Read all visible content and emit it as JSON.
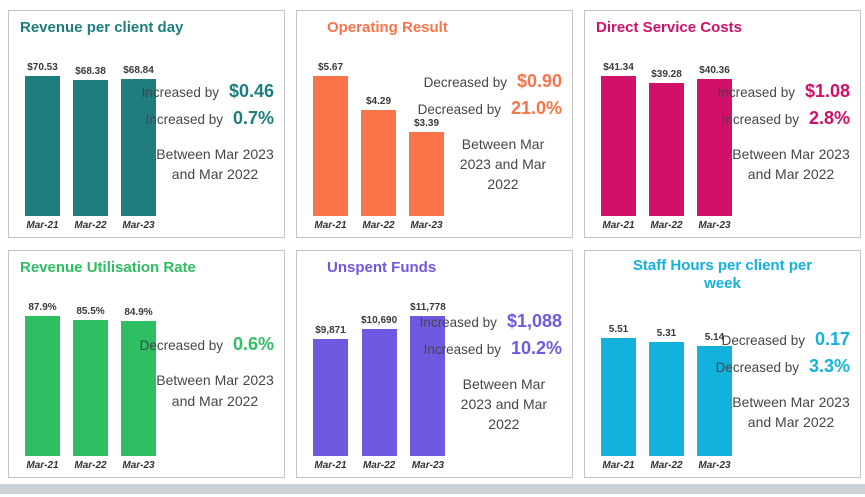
{
  "page": {
    "bottom_strip_color": "#cdd2d6"
  },
  "chart_data": [
    {
      "type": "bar",
      "title": "Revenue per client day",
      "accent": "#1F7D7D",
      "categories": [
        "Mar-21",
        "Mar-22",
        "Mar-23"
      ],
      "values": [
        70.53,
        68.38,
        68.84
      ],
      "bar_labels": [
        "$70.53",
        "$68.38",
        "$68.84"
      ],
      "annotations": {
        "metrics": [
          {
            "label": "Increased by",
            "value": "$0.46"
          },
          {
            "label": "Increased by",
            "value": "0.7%"
          }
        ],
        "period_lines": [
          "Between Mar 2023",
          "and Mar 2022"
        ]
      }
    },
    {
      "type": "bar",
      "title": "Operating Result",
      "accent": "#F97449",
      "categories": [
        "Mar-21",
        "Mar-22",
        "Mar-23"
      ],
      "values": [
        5.67,
        4.29,
        3.39
      ],
      "bar_labels": [
        "$5.67",
        "$4.29",
        "$3.39"
      ],
      "annotations": {
        "metrics": [
          {
            "label": "Decreased by",
            "value": "$0.90"
          },
          {
            "label": "Decreased by",
            "value": "21.0%"
          }
        ],
        "period_lines": [
          "Between Mar",
          "2023 and Mar 2022"
        ]
      }
    },
    {
      "type": "bar",
      "title": "Direct Service Costs",
      "accent": "#D01069",
      "categories": [
        "Mar-21",
        "Mar-22",
        "Mar-23"
      ],
      "values": [
        41.34,
        39.28,
        40.36
      ],
      "bar_labels": [
        "$41.34",
        "$39.28",
        "$40.36"
      ],
      "annotations": {
        "metrics": [
          {
            "label": "Increased by",
            "value": "$1.08"
          },
          {
            "label": "Increased by",
            "value": "2.8%"
          }
        ],
        "period_lines": [
          "Between Mar 2023",
          "and Mar 2022"
        ]
      }
    },
    {
      "type": "bar",
      "title": "Revenue Utilisation Rate",
      "accent": "#2DBF61",
      "categories": [
        "Mar-21",
        "Mar-22",
        "Mar-23"
      ],
      "values": [
        87.9,
        85.5,
        84.9
      ],
      "bar_labels": [
        "87.9%",
        "85.5%",
        "84.9%"
      ],
      "annotations": {
        "metrics": [
          {
            "label": "Decreased by",
            "value": "0.6%"
          }
        ],
        "period_lines": [
          "Between Mar 2023",
          "and Mar 2022"
        ]
      }
    },
    {
      "type": "bar",
      "title": "Unspent Funds",
      "accent": "#7158E0",
      "categories": [
        "Mar-21",
        "Mar-22",
        "Mar-23"
      ],
      "values": [
        9871,
        10690,
        11778
      ],
      "bar_labels": [
        "$9,871",
        "$10,690",
        "$11,778"
      ],
      "annotations": {
        "metrics": [
          {
            "label": "Increased by",
            "value": "$1,088"
          },
          {
            "label": "Increased by",
            "value": "10.2%"
          }
        ],
        "period_lines": [
          "Between Mar",
          "2023 and Mar 2022"
        ]
      }
    },
    {
      "type": "bar",
      "title": "Staff Hours per client per week",
      "accent": "#12B2DC",
      "categories": [
        "Mar-21",
        "Mar-22",
        "Mar-23"
      ],
      "values": [
        5.51,
        5.31,
        5.14
      ],
      "bar_labels": [
        "5.51",
        "5.31",
        "5.14"
      ],
      "annotations": {
        "metrics": [
          {
            "label": "Decreased by",
            "value": "0.17"
          },
          {
            "label": "Decreased by",
            "value": "3.3%"
          }
        ],
        "period_lines": [
          "Between Mar 2023",
          "and Mar 2022"
        ]
      }
    }
  ]
}
